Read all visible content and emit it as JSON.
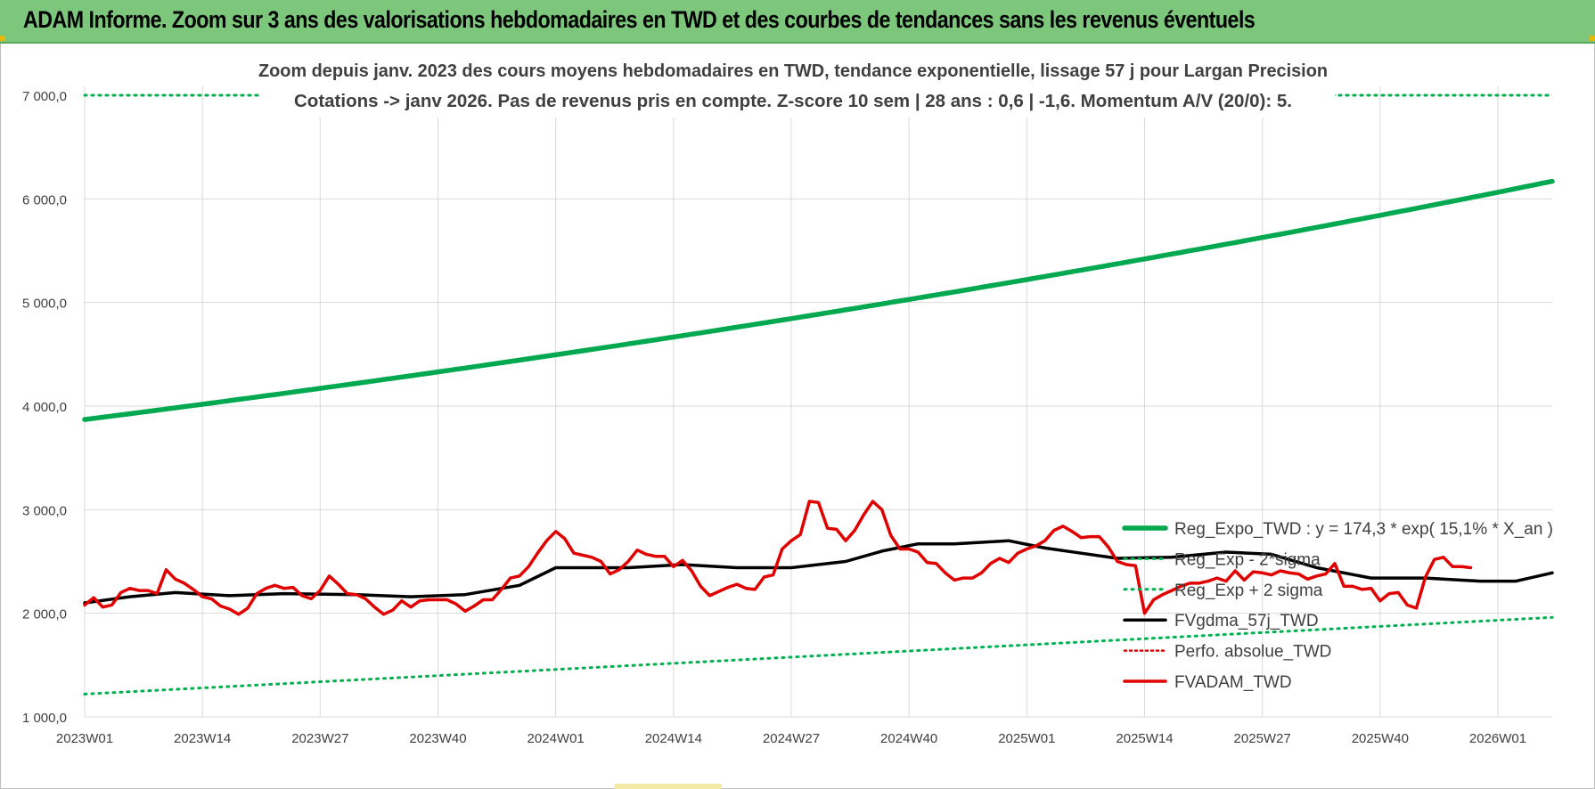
{
  "page": {
    "banner_title": "ADAM Informe. Zoom sur 3 ans des valorisations hebdomadaires en TWD et des courbes de tendances sans les revenus éventuels"
  },
  "colors": {
    "banner_bg": "#7dc77d",
    "trend_green": "#00a84f",
    "sigma_green": "#00b050",
    "average_black": "#000000",
    "price_red": "#e00000",
    "perf_red": "#e00000",
    "grid": "#d9d9d9",
    "text": "#404040"
  },
  "chart_data": {
    "type": "line",
    "title_line1": "Zoom depuis janv. 2023 des cours moyens hebdomadaires en TWD, tendance exponentielle, lissage 57 j pour Largan Precision",
    "title_line2": "Cotations -> janv 2026. Pas de revenus pris en compte. Z-score 10 sem | 28 ans : 0,6 | -1,6. Momentum A/V (20/0): 5.",
    "x_tick_labels": [
      "2023W01",
      "2023W14",
      "2023W27",
      "2023W40",
      "2024W01",
      "2024W14",
      "2024W27",
      "2024W40",
      "2025W01",
      "2025W14",
      "2025W27",
      "2025W40",
      "2026W01"
    ],
    "y_tick_labels": [
      "1 000,0",
      "2 000,0",
      "3 000,0",
      "4 000,0",
      "5 000,0",
      "6 000,0",
      "7 000,0"
    ],
    "ylim": [
      1000,
      7000
    ],
    "x_range_weeks": [
      0,
      162
    ],
    "legend": [
      {
        "key": "reg_expo",
        "label": "Reg_Expo_TWD : y = 174,3 * exp( 15,1% * X_an )",
        "color": "#00a84f",
        "style": "solid-thick"
      },
      {
        "key": "reg_minus",
        "label": "Reg_Exp - 2*sigma",
        "color": "#00b050",
        "style": "dotted"
      },
      {
        "key": "reg_plus",
        "label": "Reg_Exp + 2 sigma",
        "color": "#00b050",
        "style": "dotted"
      },
      {
        "key": "fvgdma",
        "label": "FVgdma_57j_TWD",
        "color": "#000000",
        "style": "solid"
      },
      {
        "key": "perfo",
        "label": "Perfo. absolue_TWD",
        "color": "#e00000",
        "style": "dotted"
      },
      {
        "key": "fvadam",
        "label": "FVADAM_TWD",
        "color": "#e00000",
        "style": "solid"
      }
    ],
    "series": [
      {
        "key": "reg_expo",
        "name": "Reg_Expo_TWD",
        "growth": "exponential",
        "points": [
          [
            0,
            3870
          ],
          [
            162,
            6170
          ]
        ]
      },
      {
        "key": "reg_minus",
        "name": "Reg_Exp - 2*sigma",
        "growth": "linear",
        "points": [
          [
            0,
            1220
          ],
          [
            162,
            1960
          ]
        ]
      },
      {
        "key": "reg_plus",
        "name": "Reg_Exp + 2 sigma",
        "growth": "linear",
        "points": [
          [
            0,
            7000
          ],
          [
            162,
            7000
          ]
        ]
      },
      {
        "key": "fvgdma",
        "name": "FVgdma_57j_TWD",
        "growth": "points",
        "points": [
          [
            0,
            2100
          ],
          [
            5,
            2160
          ],
          [
            10,
            2200
          ],
          [
            16,
            2170
          ],
          [
            22,
            2190
          ],
          [
            30,
            2180
          ],
          [
            36,
            2160
          ],
          [
            42,
            2180
          ],
          [
            48,
            2270
          ],
          [
            52,
            2440
          ],
          [
            56,
            2440
          ],
          [
            60,
            2440
          ],
          [
            66,
            2470
          ],
          [
            72,
            2440
          ],
          [
            78,
            2440
          ],
          [
            84,
            2500
          ],
          [
            88,
            2600
          ],
          [
            92,
            2670
          ],
          [
            96,
            2670
          ],
          [
            102,
            2700
          ],
          [
            106,
            2630
          ],
          [
            110,
            2580
          ],
          [
            114,
            2530
          ],
          [
            120,
            2540
          ],
          [
            126,
            2590
          ],
          [
            131,
            2570
          ],
          [
            136,
            2440
          ],
          [
            142,
            2340
          ],
          [
            148,
            2340
          ],
          [
            154,
            2310
          ],
          [
            158,
            2310
          ],
          [
            162,
            2390
          ]
        ]
      },
      {
        "key": "fvadam",
        "name": "FVADAM_TWD",
        "growth": "points",
        "points": [
          [
            0,
            2080
          ],
          [
            1,
            2150
          ],
          [
            2,
            2060
          ],
          [
            3,
            2080
          ],
          [
            4,
            2200
          ],
          [
            5,
            2240
          ],
          [
            6,
            2220
          ],
          [
            7,
            2220
          ],
          [
            8,
            2190
          ],
          [
            9,
            2420
          ],
          [
            10,
            2330
          ],
          [
            11,
            2290
          ],
          [
            12,
            2230
          ],
          [
            13,
            2160
          ],
          [
            14,
            2140
          ],
          [
            15,
            2070
          ],
          [
            16,
            2040
          ],
          [
            17,
            1990
          ],
          [
            18,
            2050
          ],
          [
            19,
            2190
          ],
          [
            20,
            2240
          ],
          [
            21,
            2270
          ],
          [
            22,
            2240
          ],
          [
            23,
            2250
          ],
          [
            24,
            2170
          ],
          [
            25,
            2140
          ],
          [
            26,
            2220
          ],
          [
            27,
            2360
          ],
          [
            28,
            2280
          ],
          [
            29,
            2190
          ],
          [
            30,
            2180
          ],
          [
            31,
            2140
          ],
          [
            32,
            2060
          ],
          [
            33,
            1990
          ],
          [
            34,
            2030
          ],
          [
            35,
            2120
          ],
          [
            36,
            2060
          ],
          [
            37,
            2120
          ],
          [
            38,
            2130
          ],
          [
            39,
            2130
          ],
          [
            40,
            2130
          ],
          [
            41,
            2090
          ],
          [
            42,
            2020
          ],
          [
            43,
            2070
          ],
          [
            44,
            2130
          ],
          [
            45,
            2130
          ],
          [
            46,
            2230
          ],
          [
            47,
            2340
          ],
          [
            48,
            2360
          ],
          [
            49,
            2450
          ],
          [
            50,
            2580
          ],
          [
            51,
            2700
          ],
          [
            52,
            2790
          ],
          [
            53,
            2720
          ],
          [
            54,
            2580
          ],
          [
            55,
            2560
          ],
          [
            56,
            2540
          ],
          [
            57,
            2500
          ],
          [
            58,
            2380
          ],
          [
            59,
            2420
          ],
          [
            60,
            2500
          ],
          [
            61,
            2610
          ],
          [
            62,
            2570
          ],
          [
            63,
            2550
          ],
          [
            64,
            2550
          ],
          [
            65,
            2450
          ],
          [
            66,
            2510
          ],
          [
            67,
            2410
          ],
          [
            68,
            2260
          ],
          [
            69,
            2170
          ],
          [
            70,
            2210
          ],
          [
            71,
            2250
          ],
          [
            72,
            2280
          ],
          [
            73,
            2240
          ],
          [
            74,
            2230
          ],
          [
            75,
            2350
          ],
          [
            76,
            2370
          ],
          [
            77,
            2620
          ],
          [
            78,
            2700
          ],
          [
            79,
            2760
          ],
          [
            80,
            3080
          ],
          [
            81,
            3070
          ],
          [
            82,
            2820
          ],
          [
            83,
            2810
          ],
          [
            84,
            2700
          ],
          [
            85,
            2800
          ],
          [
            86,
            2950
          ],
          [
            87,
            3080
          ],
          [
            88,
            3000
          ],
          [
            89,
            2750
          ],
          [
            90,
            2620
          ],
          [
            91,
            2620
          ],
          [
            92,
            2590
          ],
          [
            93,
            2490
          ],
          [
            94,
            2480
          ],
          [
            95,
            2390
          ],
          [
            96,
            2320
          ],
          [
            97,
            2340
          ],
          [
            98,
            2340
          ],
          [
            99,
            2390
          ],
          [
            100,
            2480
          ],
          [
            101,
            2530
          ],
          [
            102,
            2490
          ],
          [
            103,
            2580
          ],
          [
            104,
            2620
          ],
          [
            105,
            2650
          ],
          [
            106,
            2700
          ],
          [
            107,
            2800
          ],
          [
            108,
            2840
          ],
          [
            109,
            2790
          ],
          [
            110,
            2730
          ],
          [
            111,
            2740
          ],
          [
            112,
            2740
          ],
          [
            113,
            2640
          ],
          [
            114,
            2500
          ],
          [
            115,
            2470
          ],
          [
            116,
            2460
          ],
          [
            117,
            2000
          ],
          [
            118,
            2130
          ],
          [
            119,
            2180
          ],
          [
            120,
            2220
          ],
          [
            121,
            2260
          ],
          [
            122,
            2290
          ],
          [
            123,
            2290
          ],
          [
            124,
            2310
          ],
          [
            125,
            2340
          ],
          [
            126,
            2310
          ],
          [
            127,
            2410
          ],
          [
            128,
            2320
          ],
          [
            129,
            2400
          ],
          [
            130,
            2390
          ],
          [
            131,
            2370
          ],
          [
            132,
            2410
          ],
          [
            133,
            2390
          ],
          [
            134,
            2380
          ],
          [
            135,
            2330
          ],
          [
            136,
            2360
          ],
          [
            137,
            2380
          ],
          [
            138,
            2480
          ],
          [
            139,
            2260
          ],
          [
            140,
            2260
          ],
          [
            141,
            2230
          ],
          [
            142,
            2240
          ],
          [
            143,
            2120
          ],
          [
            144,
            2190
          ],
          [
            145,
            2200
          ],
          [
            146,
            2080
          ],
          [
            147,
            2050
          ],
          [
            148,
            2350
          ],
          [
            149,
            2520
          ],
          [
            150,
            2540
          ],
          [
            151,
            2450
          ],
          [
            152,
            2450
          ],
          [
            153,
            2440
          ]
        ]
      }
    ]
  }
}
